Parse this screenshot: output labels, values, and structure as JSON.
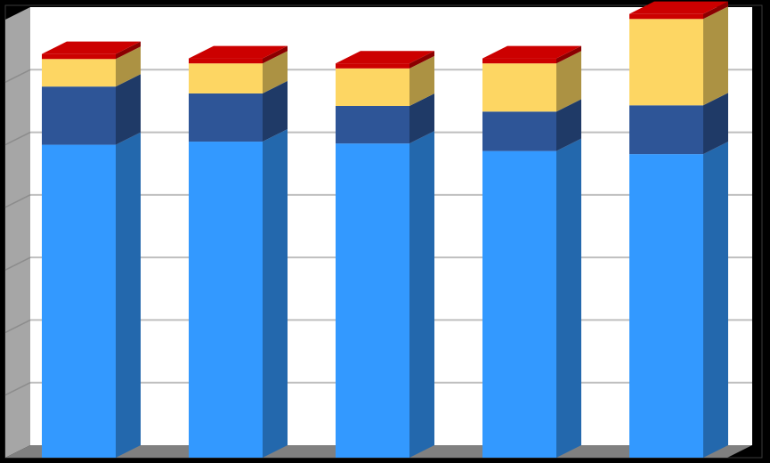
{
  "chart_data": {
    "type": "bar",
    "stacked": true,
    "three_d": true,
    "categories": [
      "",
      "",
      "",
      "",
      ""
    ],
    "series": [
      {
        "values": [
          5.0,
          5.05,
          5.02,
          4.9,
          4.85
        ],
        "color": "#3399FF"
      },
      {
        "values": [
          0.93,
          0.77,
          0.6,
          0.63,
          0.78
        ],
        "color": "#2E5597"
      },
      {
        "values": [
          0.44,
          0.48,
          0.6,
          0.77,
          1.38
        ],
        "color": "#FDD663"
      },
      {
        "values": [
          0.08,
          0.08,
          0.08,
          0.08,
          0.08
        ],
        "color": "#CC0000"
      }
    ],
    "ylim": [
      0,
      7
    ],
    "ytick_count": 7,
    "grid": true,
    "legend": "none",
    "title": "",
    "xlabel": "",
    "ylabel": ""
  },
  "colors": {
    "background": "#000000",
    "plot_area": "#FFFFFF",
    "side_wall": "#A6A6A6",
    "floor": "#808080",
    "gridline": "#BFBFBF"
  }
}
